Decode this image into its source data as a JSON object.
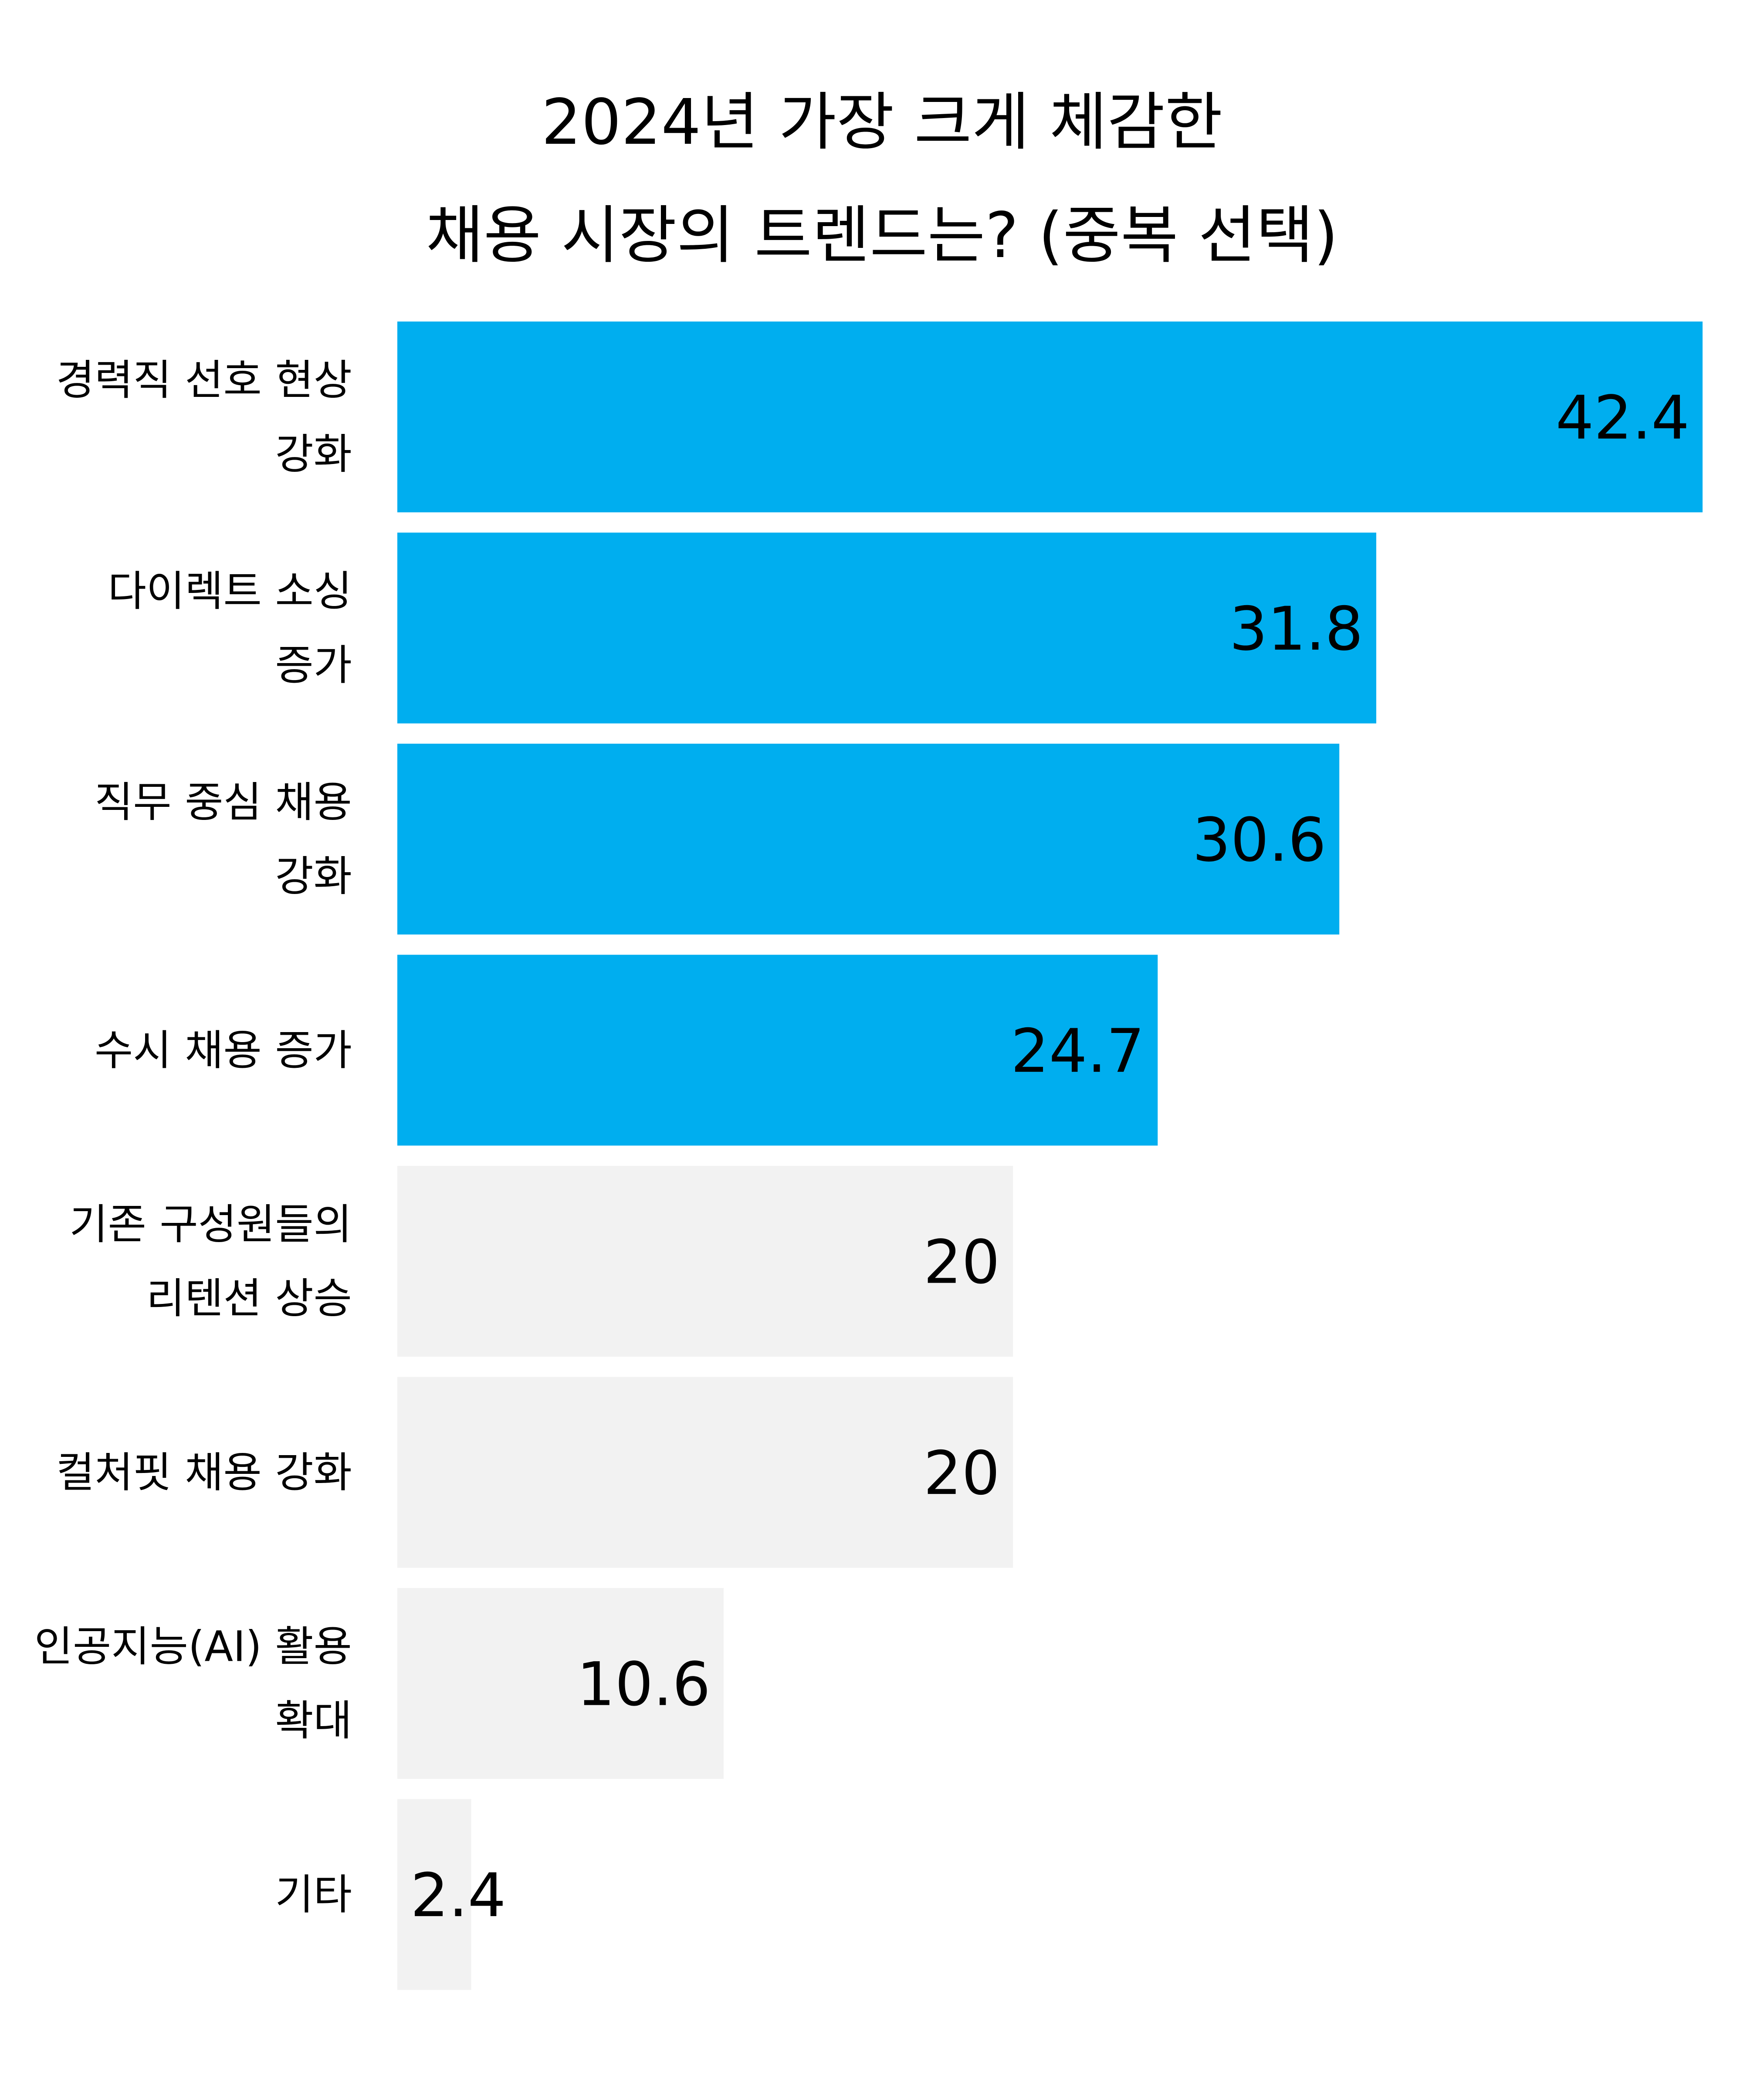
{
  "chart_data": {
    "type": "bar",
    "orientation": "horizontal",
    "title_lines": [
      "2024년 가장 크게 체감한",
      "채용 시장의 트렌드는? (중복 선택)"
    ],
    "categories": [
      [
        "경력직 선호 현상",
        "강화"
      ],
      [
        "다이렉트 소싱",
        "증가"
      ],
      [
        "직무 중심 채용",
        "강화"
      ],
      [
        "수시 채용 증가"
      ],
      [
        "기존 구성원들의",
        "리텐션 상승"
      ],
      [
        "컬처핏 채용 강화"
      ],
      [
        "인공지능(AI) 활용",
        "확대"
      ],
      [
        "기타"
      ]
    ],
    "values": [
      42.4,
      31.8,
      30.6,
      24.7,
      20,
      20,
      10.6,
      2.4
    ],
    "value_labels": [
      "42.4",
      "31.8",
      "30.6",
      "24.7",
      "20",
      "20",
      "10.6",
      "2.4"
    ],
    "highlighted": [
      true,
      true,
      true,
      true,
      false,
      false,
      false,
      false
    ],
    "xlim": [
      0,
      42.4
    ],
    "grid": false,
    "legend": "none"
  },
  "colors": {
    "highlight": "#00AEEF",
    "muted": "#F2F2F2",
    "text": "#000000"
  }
}
